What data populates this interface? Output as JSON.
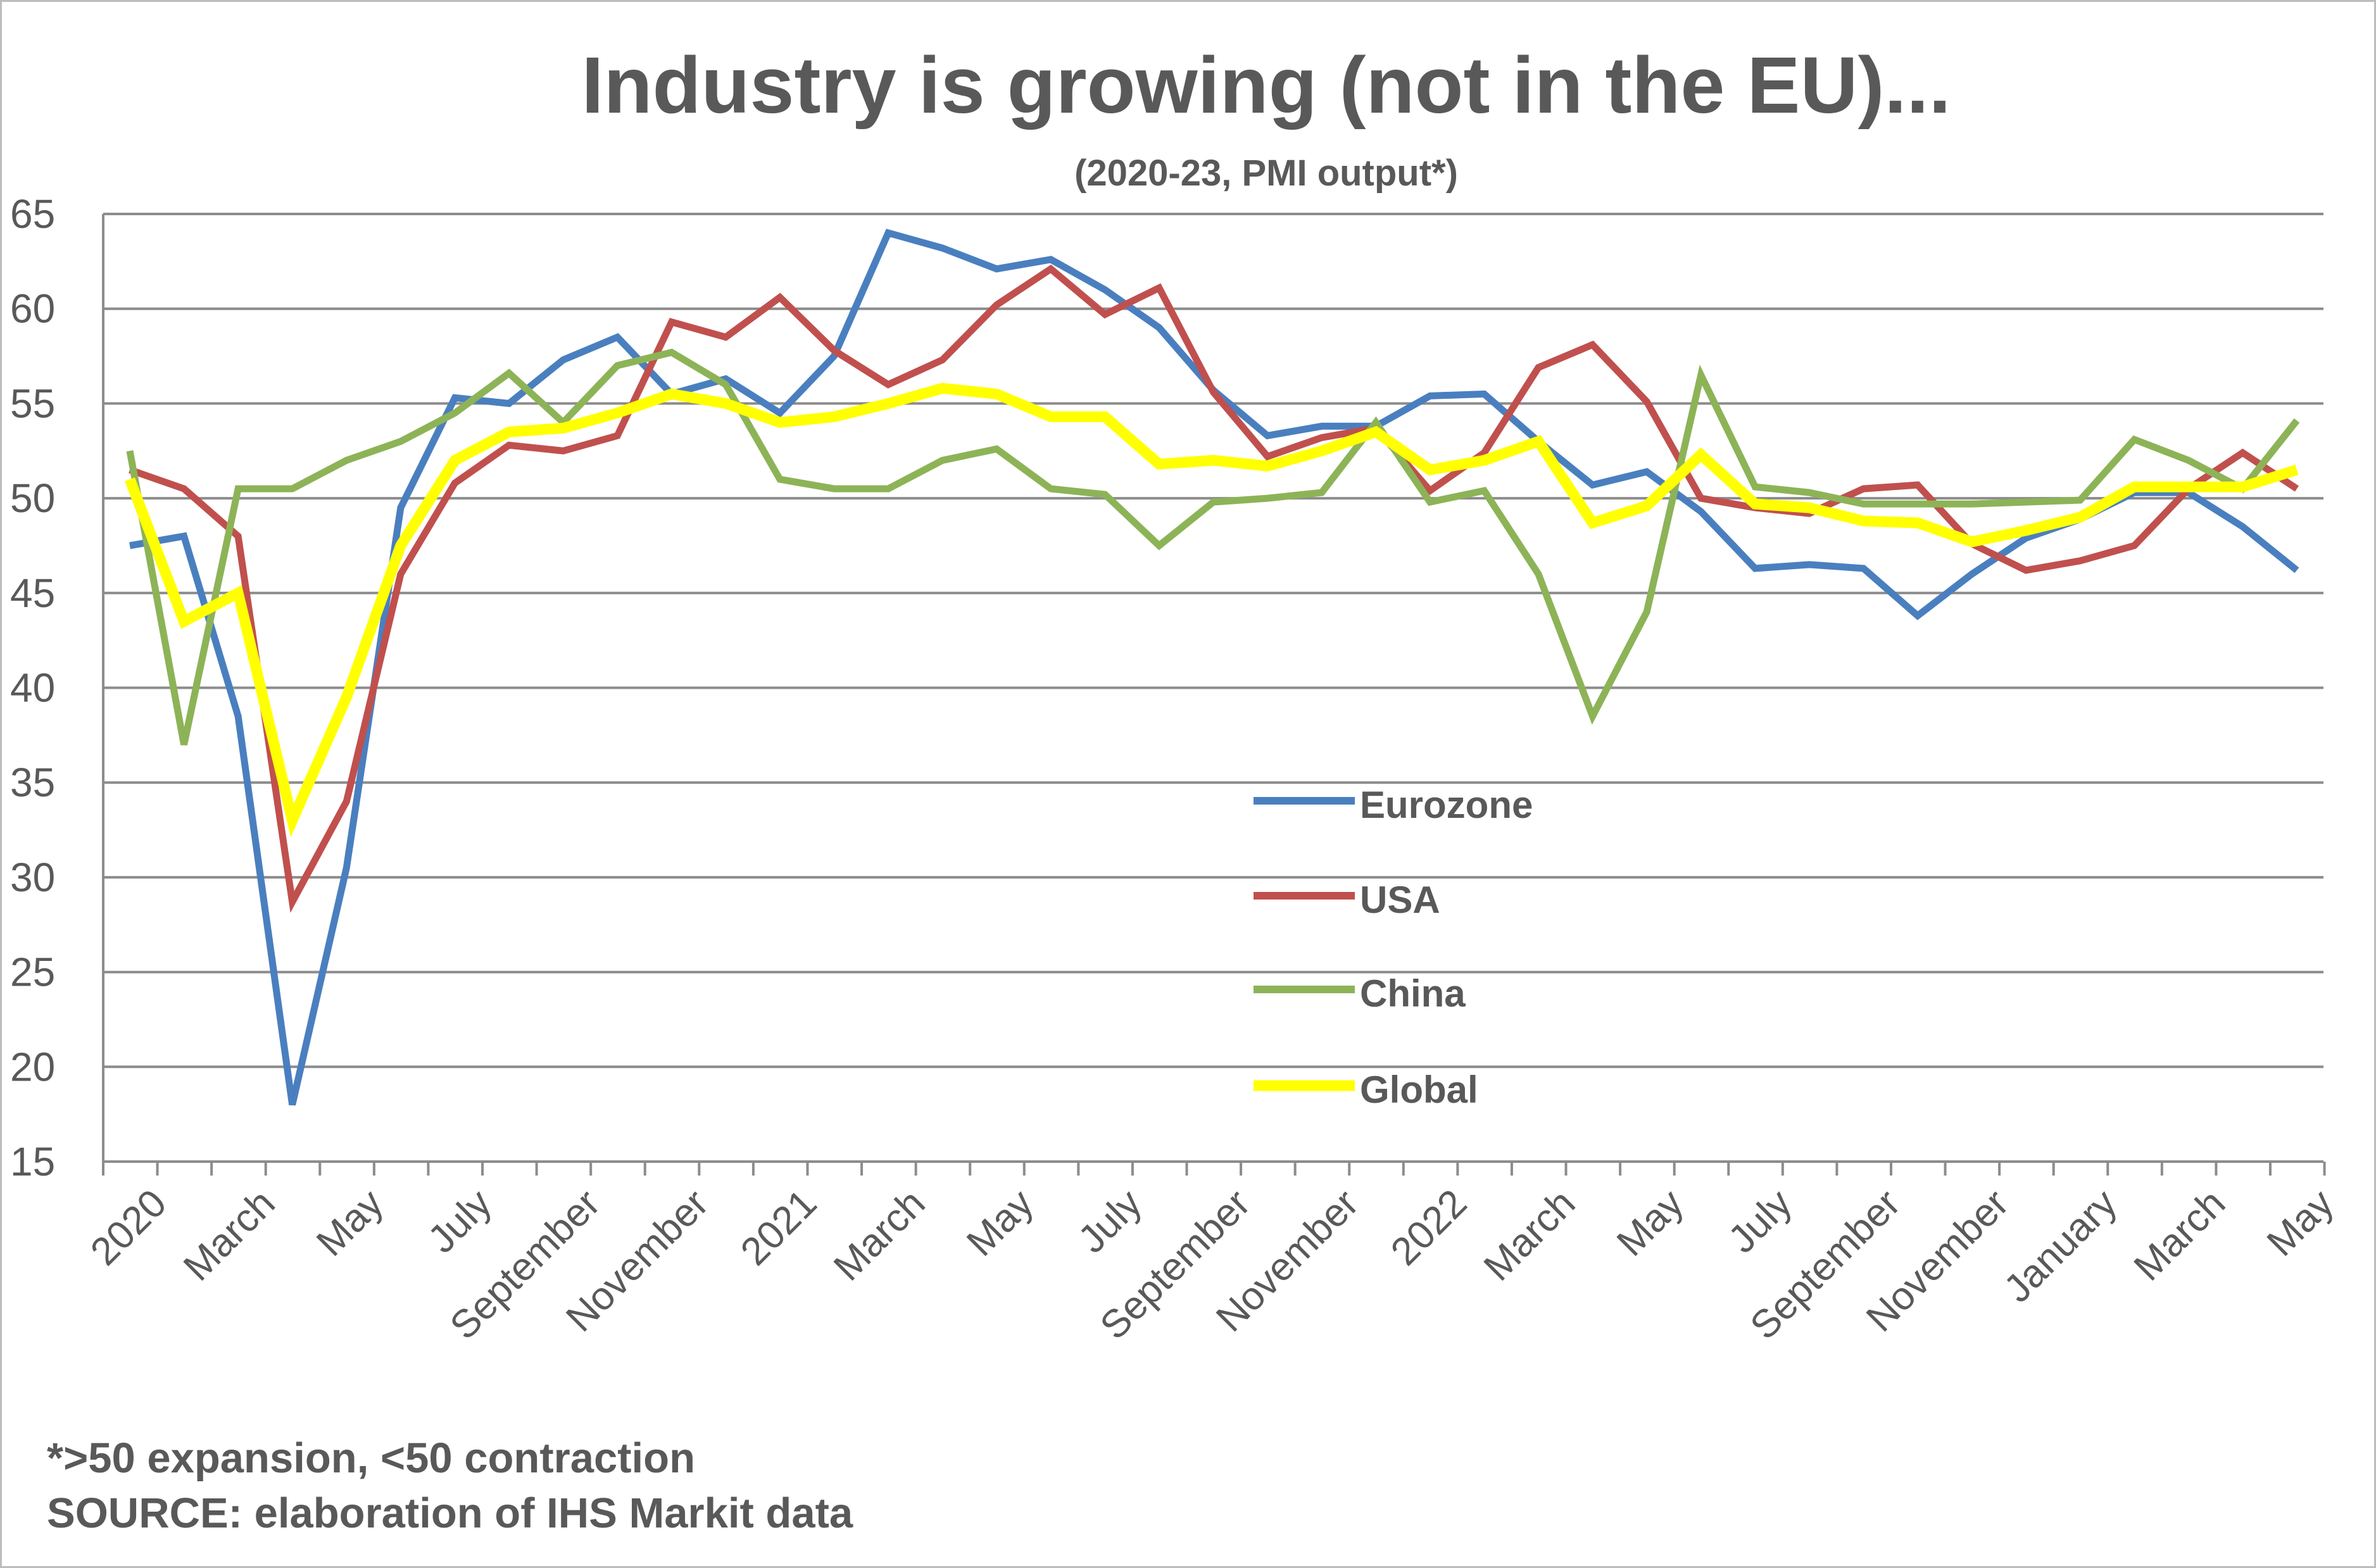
{
  "chart_data": {
    "type": "line",
    "title": "Industry is growing (not in the EU)...",
    "subtitle": "(2020-23, PMI output*)",
    "xlabel": "",
    "ylabel": "",
    "ylim": [
      15,
      65
    ],
    "yticks": [
      15,
      20,
      25,
      30,
      35,
      40,
      45,
      50,
      55,
      60,
      65
    ],
    "grid": true,
    "legend_position": "center",
    "x_tick_labels": [
      "2020",
      "March",
      "May",
      "July",
      "September",
      "November",
      "2021",
      "March",
      "May",
      "July",
      "September",
      "November",
      "2022",
      "March",
      "May",
      "July",
      "September",
      "November",
      "January",
      "March",
      "May"
    ],
    "colors": {
      "Eurozone": "#4a7fbf",
      "USA": "#c0504d",
      "China": "#8db357",
      "Global": "#ffff00",
      "grid": "#8c8c8c",
      "text": "#595959"
    },
    "series": [
      {
        "name": "Eurozone",
        "values": [
          47.5,
          48.0,
          38.5,
          18.0,
          30.5,
          49.5,
          55.3,
          55.0,
          57.3,
          58.5,
          55.5,
          56.3,
          54.5,
          57.5,
          64.0,
          63.2,
          62.1,
          62.6,
          61.0,
          59.0,
          55.7,
          53.3,
          53.8,
          53.8,
          55.4,
          55.5,
          53.0,
          50.7,
          51.4,
          49.3,
          46.3,
          46.5,
          46.3,
          43.8,
          46.0,
          47.9,
          48.9,
          50.3,
          50.3,
          48.5,
          46.2
        ]
      },
      {
        "name": "USA",
        "values": [
          51.5,
          50.5,
          48.0,
          28.7,
          34.0,
          46.0,
          50.8,
          52.8,
          52.5,
          53.3,
          59.3,
          58.5,
          60.6,
          57.8,
          56.0,
          57.3,
          60.2,
          62.1,
          59.7,
          61.1,
          55.6,
          52.2,
          53.2,
          53.7,
          50.4,
          52.4,
          56.9,
          58.1,
          55.1,
          50.0,
          49.5,
          49.2,
          50.5,
          50.7,
          47.6,
          46.2,
          46.7,
          47.5,
          50.5,
          52.4,
          50.5
        ]
      },
      {
        "name": "China",
        "values": [
          52.5,
          37.0,
          50.5,
          50.5,
          52.0,
          53.0,
          54.5,
          56.6,
          54.0,
          57.0,
          57.7,
          56.0,
          51.0,
          50.5,
          50.5,
          52.0,
          52.6,
          50.5,
          50.2,
          47.5,
          49.8,
          50.0,
          50.3,
          54.0,
          49.8,
          50.4,
          46.0,
          38.5,
          44.0,
          56.5,
          50.6,
          50.3,
          49.7,
          49.7,
          49.7,
          49.8,
          49.9,
          53.1,
          52.0,
          50.5,
          54.1
        ]
      },
      {
        "name": "Global",
        "values": [
          51.0,
          43.5,
          45.0,
          33.0,
          39.5,
          47.5,
          52.0,
          53.5,
          53.7,
          54.5,
          55.5,
          55.0,
          54.0,
          54.3,
          55.0,
          55.8,
          55.5,
          54.3,
          54.3,
          51.8,
          52.0,
          51.7,
          52.5,
          53.5,
          51.5,
          52.0,
          53.0,
          48.7,
          49.6,
          52.3,
          49.7,
          49.5,
          48.8,
          48.7,
          47.7,
          48.3,
          49.0,
          50.6,
          50.6,
          50.6,
          51.5
        ]
      }
    ]
  },
  "footnotes": {
    "line1": "*>50 expansion, <50 contraction",
    "line2": "SOURCE: elaboration of IHS Markit data"
  }
}
